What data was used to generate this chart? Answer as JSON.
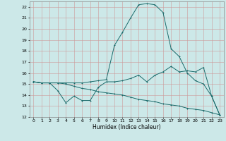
{
  "xlabel": "Humidex (Indice chaleur)",
  "xlim": [
    -0.5,
    23.5
  ],
  "ylim": [
    12,
    22.5
  ],
  "yticks": [
    12,
    13,
    14,
    15,
    16,
    17,
    18,
    19,
    20,
    21,
    22
  ],
  "xticks": [
    0,
    1,
    2,
    3,
    4,
    5,
    6,
    7,
    8,
    9,
    10,
    11,
    12,
    13,
    14,
    15,
    16,
    17,
    18,
    19,
    20,
    21,
    22,
    23
  ],
  "bg_color": "#cce8e8",
  "grid_color": "#cc9999",
  "line_color": "#1a6b6b",
  "line1_x": [
    0,
    1,
    2,
    3,
    4,
    5,
    6,
    7,
    8,
    9,
    10,
    11,
    12,
    13,
    14,
    15,
    16,
    17,
    18,
    19,
    20,
    21,
    22,
    23
  ],
  "line1_y": [
    15.2,
    15.1,
    15.1,
    14.4,
    13.3,
    13.9,
    13.5,
    13.5,
    14.7,
    15.2,
    15.2,
    15.3,
    15.5,
    15.8,
    15.2,
    15.8,
    16.1,
    16.6,
    16.1,
    16.2,
    16.1,
    16.5,
    13.9,
    12.2
  ],
  "line2_x": [
    0,
    1,
    2,
    3,
    4,
    5,
    6,
    7,
    8,
    9,
    10,
    11,
    12,
    13,
    14,
    15,
    16,
    17,
    18,
    19,
    20,
    21,
    22,
    23
  ],
  "line2_y": [
    15.2,
    15.1,
    15.1,
    15.1,
    15.1,
    15.1,
    15.1,
    15.2,
    15.3,
    15.4,
    18.5,
    19.7,
    21.0,
    22.2,
    22.3,
    22.2,
    21.5,
    18.2,
    17.5,
    16.0,
    15.3,
    15.0,
    13.9,
    12.2
  ],
  "line3_x": [
    0,
    1,
    2,
    3,
    4,
    5,
    6,
    7,
    8,
    9,
    10,
    11,
    12,
    13,
    14,
    15,
    16,
    17,
    18,
    19,
    20,
    21,
    22,
    23
  ],
  "line3_y": [
    15.2,
    15.1,
    15.1,
    15.1,
    15.0,
    14.8,
    14.6,
    14.5,
    14.3,
    14.2,
    14.1,
    14.0,
    13.8,
    13.6,
    13.5,
    13.4,
    13.2,
    13.1,
    13.0,
    12.8,
    12.7,
    12.6,
    12.4,
    12.2
  ]
}
